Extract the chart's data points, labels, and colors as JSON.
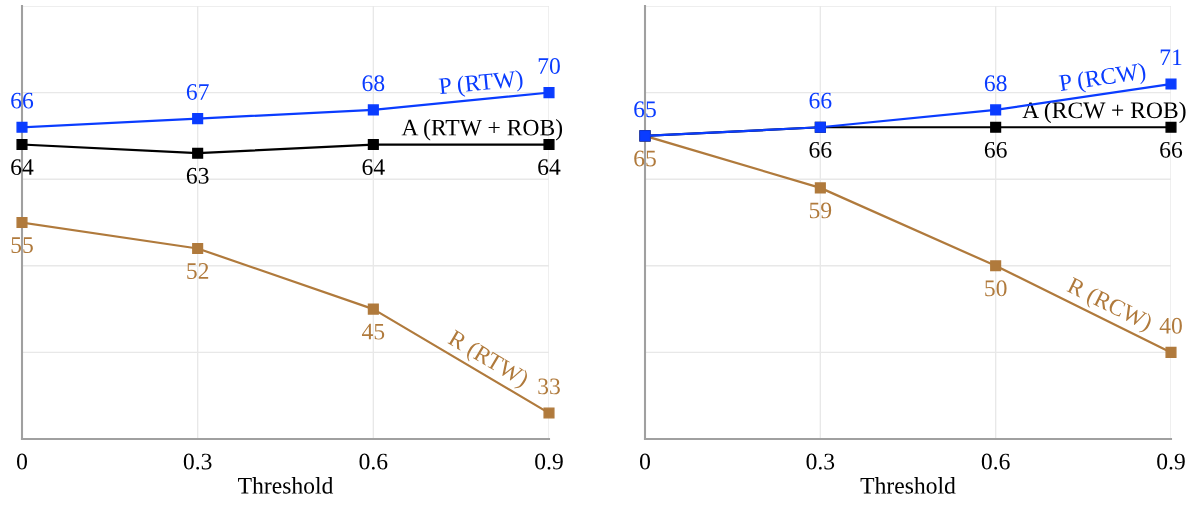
{
  "chart_data": [
    {
      "type": "line",
      "x": [
        0,
        0.3,
        0.6,
        0.9
      ],
      "xlabel": "Threshold",
      "xlim": [
        0,
        0.9
      ],
      "xticks": [
        0,
        0.3,
        0.6,
        0.9
      ],
      "ylim": [
        30,
        80
      ],
      "yticks": [
        {
          "value": 30,
          "label": null
        },
        {
          "value": 40,
          "label": null
        },
        {
          "value": 50,
          "label": null
        },
        {
          "value": 60,
          "label": null
        },
        {
          "value": 70,
          "label": null
        },
        {
          "value": 80,
          "label": null
        }
      ],
      "tick_labels": "x",
      "grid": true,
      "marker": "square",
      "line_style": "solid",
      "data_labels": true,
      "series": [
        {
          "name": "P (RTW)",
          "color": "#0a3cff",
          "values": [
            66,
            67,
            68,
            70
          ]
        },
        {
          "name": "A (RTW + ROB)",
          "color": "#000000",
          "values": [
            64,
            63,
            64,
            64
          ]
        },
        {
          "name": "R (RTW)",
          "color": "#b07a3c",
          "values": [
            55,
            52,
            45,
            33
          ]
        }
      ]
    },
    {
      "type": "line",
      "x": [
        0,
        0.3,
        0.6,
        0.9
      ],
      "xlabel": "Threshold",
      "xlim": [
        0,
        0.9
      ],
      "xticks": [
        0,
        0.3,
        0.6,
        0.9
      ],
      "ylim": [
        30,
        80
      ],
      "yticks": [
        {
          "value": 30,
          "label": null
        },
        {
          "value": 40,
          "label": null
        },
        {
          "value": 50,
          "label": null
        },
        {
          "value": 60,
          "label": null
        },
        {
          "value": 70,
          "label": null
        },
        {
          "value": 80,
          "label": null
        }
      ],
      "tick_labels": "x",
      "grid": true,
      "marker": "square",
      "line_style": "solid",
      "series": [
        {
          "name": "P (RCW)",
          "color": "#0a3cff",
          "values": [
            65,
            66,
            68,
            71
          ],
          "value_labels": [
            "65",
            "66",
            "68",
            "71"
          ]
        },
        {
          "name": "A (RCW + ROB)",
          "color": "#000000",
          "values": [
            65,
            66,
            66,
            66
          ],
          "value_labels": [
            null,
            "66",
            "66",
            "66"
          ]
        },
        {
          "name": "R (RCW)",
          "color": "#b07a3c",
          "values": [
            65,
            59,
            50,
            40
          ],
          "value_labels": [
            "65",
            "59",
            "50",
            "40"
          ]
        }
      ]
    }
  ]
}
